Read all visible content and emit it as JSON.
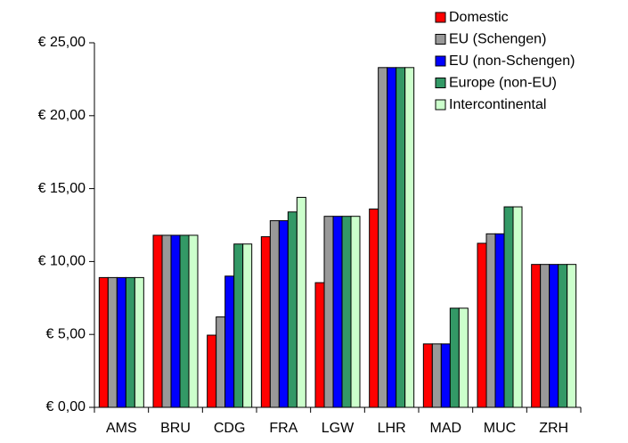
{
  "chart_data": {
    "type": "bar",
    "categories": [
      "AMS",
      "BRU",
      "CDG",
      "FRA",
      "LGW",
      "LHR",
      "MAD",
      "MUC",
      "ZRH"
    ],
    "series": [
      {
        "name": "Domestic",
        "color": "#ff0000",
        "values": [
          8.9,
          11.8,
          4.95,
          11.7,
          8.55,
          13.6,
          4.35,
          11.25,
          9.8
        ]
      },
      {
        "name": "EU (Schengen)",
        "color": "#999999",
        "values": [
          8.9,
          11.8,
          6.2,
          12.8,
          13.1,
          23.3,
          4.35,
          11.9,
          9.8
        ]
      },
      {
        "name": "EU (non-Schengen)",
        "color": "#0000ff",
        "values": [
          8.9,
          11.8,
          9.0,
          12.8,
          13.1,
          23.3,
          4.35,
          11.9,
          9.8
        ]
      },
      {
        "name": "Europe (non-EU)",
        "color": "#339966",
        "values": [
          8.9,
          11.8,
          11.2,
          13.4,
          13.1,
          23.3,
          6.8,
          13.75,
          9.8
        ]
      },
      {
        "name": "Intercontinental",
        "color": "#ccffcc",
        "values": [
          8.9,
          11.8,
          11.2,
          14.4,
          13.1,
          23.3,
          6.8,
          13.75,
          9.8
        ]
      }
    ],
    "ylim": [
      0,
      25
    ],
    "yticks": [
      {
        "value": 0,
        "label": "€ 0,00"
      },
      {
        "value": 5,
        "label": "€ 5,00"
      },
      {
        "value": 10,
        "label": "€ 10,00"
      },
      {
        "value": 15,
        "label": "€ 15,00"
      },
      {
        "value": 20,
        "label": "€ 20,00"
      },
      {
        "value": 25,
        "label": "€ 25,00"
      }
    ],
    "grid": false,
    "legend": "top-right"
  }
}
